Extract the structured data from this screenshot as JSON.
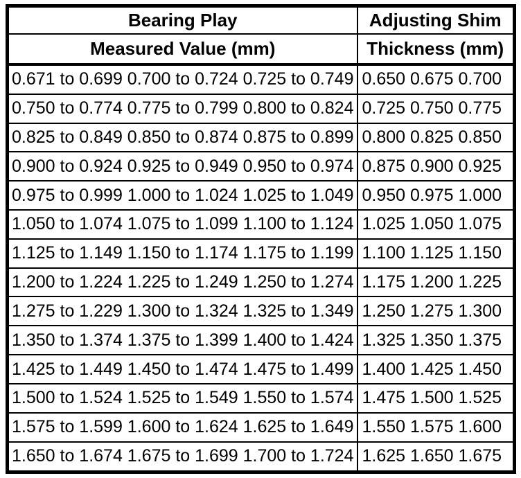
{
  "colors": {
    "border": "#000000",
    "text": "#000000",
    "background": "#ffffff"
  },
  "table": {
    "header": {
      "bearing_play": "Bearing Play",
      "measured_value": "Measured Value (mm)",
      "adjusting_shim": "Adjusting Shim",
      "thickness": "Thickness (mm)"
    },
    "rows": [
      {
        "measured": "0.671 to 0.699 0.700 to 0.724 0.725 to 0.749",
        "shim": "0.650 0.675 0.700"
      },
      {
        "measured": "0.750 to 0.774 0.775 to 0.799 0.800 to 0.824",
        "shim": "0.725 0.750 0.775"
      },
      {
        "measured": "0.825 to 0.849 0.850 to 0.874 0.875 to 0.899",
        "shim": "0.800 0.825 0.850"
      },
      {
        "measured": "0.900 to 0.924 0.925 to 0.949 0.950 to 0.974",
        "shim": "0.875 0.900 0.925"
      },
      {
        "measured": "0.975 to 0.999 1.000 to 1.024 1.025 to 1.049",
        "shim": "0.950 0.975 1.000"
      },
      {
        "measured": "1.050 to 1.074 1.075 to 1.099 1.100 to 1.124",
        "shim": "1.025 1.050 1.075"
      },
      {
        "measured": "1.125 to 1.149 1.150 to 1.174 1.175 to 1.199",
        "shim": "1.100 1.125 1.150"
      },
      {
        "measured": "1.200 to 1.224 1.225 to 1.249 1.250 to 1.274",
        "shim": "1.175 1.200 1.225"
      },
      {
        "measured": "1.275 to 1.229 1.300 to 1.324 1.325 to 1.349",
        "shim": "1.250 1.275 1.300"
      },
      {
        "measured": "1.350 to 1.374 1.375 to 1.399 1.400 to 1.424",
        "shim": "1.325 1.350 1.375"
      },
      {
        "measured": "1.425 to 1.449 1.450 to 1.474 1.475 to 1.499",
        "shim": "1.400 1.425 1.450"
      },
      {
        "measured": "1.500 to 1.524 1.525 to 1.549 1.550 to 1.574",
        "shim": "1.475 1.500 1.525"
      },
      {
        "measured": "1.575 to 1.599 1.600 to 1.624 1.625 to 1.649",
        "shim": "1.550 1.575 1.600"
      },
      {
        "measured": "1.650 to 1.674 1.675 to 1.699 1.700 to 1.724",
        "shim": "1.625 1.650 1.675"
      }
    ]
  }
}
